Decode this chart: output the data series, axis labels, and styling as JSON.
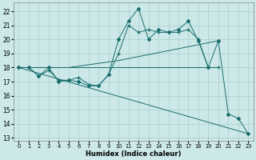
{
  "xlabel": "Humidex (Indice chaleur)",
  "background_color": "#cce8e8",
  "grid_color": "#aacccc",
  "line_color": "#1a6e6e",
  "xlim": [
    -0.5,
    23.5
  ],
  "ylim": [
    12.8,
    22.6
  ],
  "yticks": [
    13,
    14,
    15,
    16,
    17,
    18,
    19,
    20,
    21,
    22
  ],
  "xticks": [
    0,
    1,
    2,
    3,
    4,
    5,
    6,
    7,
    8,
    9,
    10,
    11,
    12,
    13,
    14,
    15,
    16,
    17,
    18,
    19,
    20,
    21,
    22,
    23
  ],
  "series": [
    {
      "x": [
        0,
        1,
        2,
        3,
        4,
        5,
        6,
        7,
        8,
        9,
        10,
        11,
        12,
        13,
        14,
        15,
        16,
        17,
        18,
        19,
        20,
        21,
        22,
        23
      ],
      "y": [
        18.0,
        18.0,
        17.4,
        18.0,
        17.0,
        17.1,
        17.0,
        16.7,
        16.7,
        17.5,
        20.0,
        21.3,
        22.2,
        20.0,
        20.7,
        20.5,
        20.7,
        21.3,
        19.9,
        18.0,
        19.9,
        14.7,
        14.4,
        13.3
      ],
      "marker": "D",
      "markersize": 2.0
    },
    {
      "x": [
        0,
        1,
        2,
        3,
        4,
        5,
        6,
        7,
        8,
        9,
        10,
        11,
        12,
        13,
        14,
        15,
        16,
        17,
        18,
        19,
        20
      ],
      "y": [
        18.0,
        18.0,
        17.4,
        17.8,
        17.1,
        17.1,
        17.3,
        16.8,
        16.7,
        17.5,
        19.0,
        21.0,
        20.5,
        20.7,
        20.5,
        20.5,
        20.5,
        20.7,
        20.0,
        18.0,
        18.0
      ],
      "marker": "+",
      "markersize": 3.5
    },
    {
      "x": [
        0,
        5,
        10,
        15,
        20
      ],
      "y": [
        18.0,
        18.0,
        18.5,
        19.2,
        19.9
      ],
      "marker": "None",
      "markersize": 0
    },
    {
      "x": [
        0,
        20
      ],
      "y": [
        18.0,
        18.0
      ],
      "marker": "None",
      "markersize": 0
    },
    {
      "x": [
        0,
        23
      ],
      "y": [
        18.0,
        13.3
      ],
      "marker": "None",
      "markersize": 0
    }
  ]
}
